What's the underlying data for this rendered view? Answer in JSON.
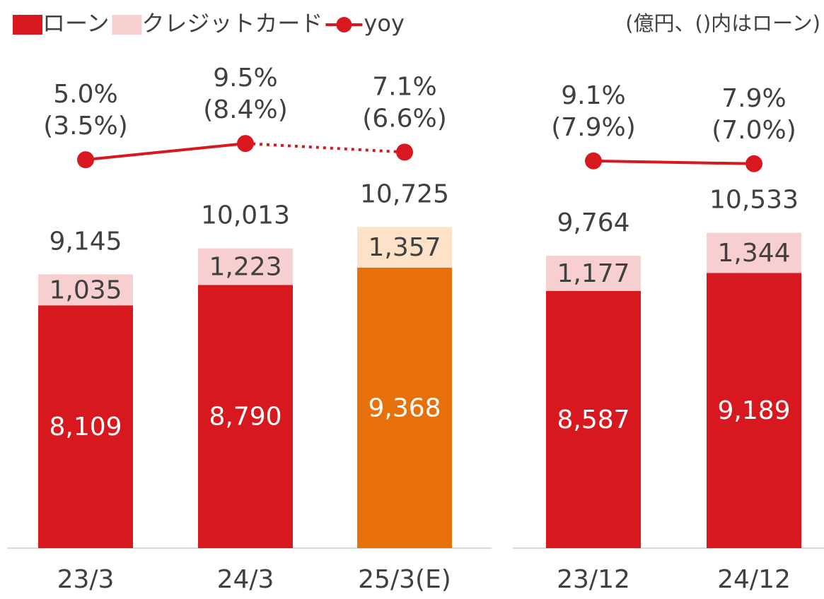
{
  "note": "(億円、()内はローン)",
  "chart_data": [
    {
      "type": "bar",
      "categories": [
        "23/3",
        "24/3",
        "25/3(E)"
      ],
      "ylim": [
        0,
        18000
      ],
      "y2lim": [
        -102.6,
        46.7
      ],
      "series": [
        {
          "name": "ローン",
          "color": "#d7191f",
          "colors": [
            "#d7191f",
            "#d7191f",
            "#e8700a"
          ],
          "label_color": "#ffffff",
          "values": [
            8109,
            8790,
            9368
          ],
          "value_labels": [
            "8,109",
            "8,790",
            "9,368"
          ]
        },
        {
          "name": "クレジットカード",
          "color": "#f8cfd0",
          "colors": [
            "#f8cfd0",
            "#f8cfd0",
            "#fde2c8"
          ],
          "label_color": "#404040",
          "values": [
            1035,
            1223,
            1357
          ],
          "value_labels": [
            "1,035",
            "1,223",
            "1,357"
          ]
        },
        {
          "name": "yoy",
          "type": "line",
          "axis": "y2",
          "color": "#d7191f",
          "dotted_segments": [
            1
          ],
          "values": [
            5.0,
            9.5,
            7.1
          ],
          "value_labels": [
            "5.0%",
            "9.5%",
            "7.1%"
          ]
        }
      ],
      "loan_yoy_labels": [
        "(3.5%)",
        "(8.4%)",
        "(6.6%)"
      ],
      "totals": {
        "values": [
          9145,
          10013,
          10725
        ],
        "value_labels": [
          "9,145",
          "10,013",
          "10,725"
        ]
      }
    },
    {
      "type": "bar",
      "categories": [
        "23/12",
        "24/12"
      ],
      "ylim": [
        0,
        18000
      ],
      "y2lim": [
        -155.5,
        73.6
      ],
      "series": [
        {
          "name": "ローン",
          "color": "#d7191f",
          "colors": [
            "#d7191f",
            "#d7191f"
          ],
          "label_color": "#ffffff",
          "values": [
            8587,
            9189
          ],
          "value_labels": [
            "8,587",
            "9,189"
          ]
        },
        {
          "name": "クレジットカード",
          "color": "#f8cfd0",
          "colors": [
            "#f8cfd0",
            "#f8cfd0"
          ],
          "label_color": "#404040",
          "values": [
            1177,
            1344
          ],
          "value_labels": [
            "1,177",
            "1,344"
          ]
        },
        {
          "name": "yoy",
          "type": "line",
          "axis": "y2",
          "color": "#d7191f",
          "dotted_segments": [],
          "values": [
            9.1,
            7.9
          ],
          "value_labels": [
            "9.1%",
            "7.9%"
          ]
        }
      ],
      "loan_yoy_labels": [
        "(7.9%)",
        "(7.0%)"
      ],
      "totals": {
        "values": [
          9764,
          10533
        ],
        "value_labels": [
          "9,764",
          "10,533"
        ]
      }
    }
  ]
}
